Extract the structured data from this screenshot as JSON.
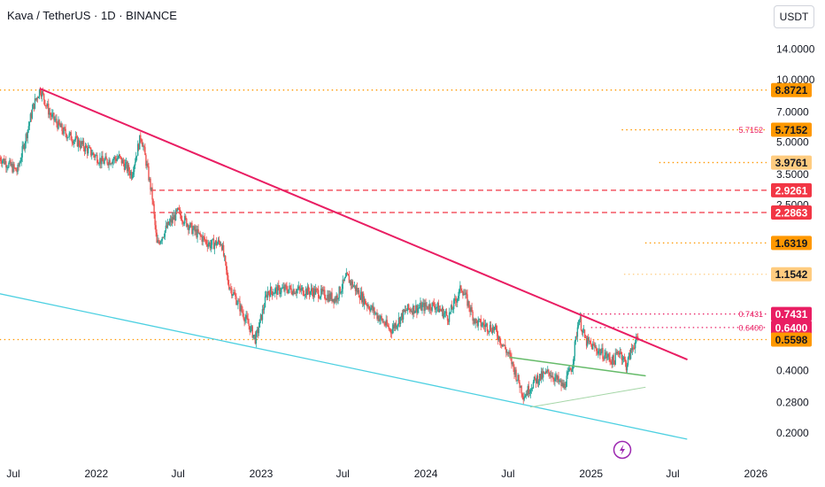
{
  "header": {
    "title": "Kava / TetherUS · 1D · BINANCE",
    "currency_label": "USDT"
  },
  "chart_data": {
    "type": "candlestick",
    "symbol": "Kava / TetherUS",
    "interval": "1D",
    "exchange": "BINANCE",
    "scale": "log",
    "y_ticks": [
      14.0,
      10.0,
      7.0,
      5.0,
      3.5,
      2.5,
      0.4,
      0.28,
      0.2
    ],
    "y_tick_labels": [
      "14.0000",
      "10.0000",
      "7.0000",
      "5.0000",
      "3.5000",
      "2.5000",
      "0.4000",
      "0.2800",
      "0.2000"
    ],
    "x_ticks": [
      {
        "date": "2021-07-01",
        "label": "Jul"
      },
      {
        "date": "2022-01-01",
        "label": "2022"
      },
      {
        "date": "2022-07-01",
        "label": "Jul"
      },
      {
        "date": "2023-01-01",
        "label": "2023"
      },
      {
        "date": "2023-07-01",
        "label": "Jul"
      },
      {
        "date": "2024-01-01",
        "label": "2024"
      },
      {
        "date": "2024-07-01",
        "label": "Jul"
      },
      {
        "date": "2025-01-01",
        "label": "2025"
      },
      {
        "date": "2025-07-01",
        "label": "Jul"
      },
      {
        "date": "2026-01-01",
        "label": "2026"
      }
    ],
    "price_path": [
      [
        "2021-06-01",
        4.2
      ],
      [
        "2021-07-10",
        3.6
      ],
      [
        "2021-08-15",
        7.5
      ],
      [
        "2021-08-30",
        9.0
      ],
      [
        "2021-09-20",
        6.8
      ],
      [
        "2021-10-20",
        5.6
      ],
      [
        "2021-12-01",
        4.8
      ],
      [
        "2022-01-15",
        4.0
      ],
      [
        "2022-02-20",
        4.2
      ],
      [
        "2022-03-20",
        3.5
      ],
      [
        "2022-04-10",
        5.4
      ],
      [
        "2022-04-25",
        3.6
      ],
      [
        "2022-05-05",
        2.7
      ],
      [
        "2022-05-15",
        1.6
      ],
      [
        "2022-06-10",
        2.0
      ],
      [
        "2022-07-01",
        2.3
      ],
      [
        "2022-08-01",
        1.9
      ],
      [
        "2022-09-10",
        1.6
      ],
      [
        "2022-10-05",
        1.65
      ],
      [
        "2022-10-20",
        1.05
      ],
      [
        "2022-12-20",
        0.56
      ],
      [
        "2023-01-15",
        0.95
      ],
      [
        "2023-03-01",
        0.98
      ],
      [
        "2023-05-01",
        0.95
      ],
      [
        "2023-06-15",
        0.88
      ],
      [
        "2023-07-10",
        1.12
      ],
      [
        "2023-08-20",
        0.85
      ],
      [
        "2023-10-15",
        0.62
      ],
      [
        "2023-11-20",
        0.78
      ],
      [
        "2024-01-20",
        0.82
      ],
      [
        "2024-02-20",
        0.72
      ],
      [
        "2024-03-20",
        1.0
      ],
      [
        "2024-04-20",
        0.68
      ],
      [
        "2024-06-01",
        0.63
      ],
      [
        "2024-07-05",
        0.46
      ],
      [
        "2024-08-05",
        0.3
      ],
      [
        "2024-09-01",
        0.36
      ],
      [
        "2024-10-01",
        0.39
      ],
      [
        "2024-11-01",
        0.33
      ],
      [
        "2024-11-20",
        0.42
      ],
      [
        "2024-12-05",
        0.72
      ],
      [
        "2024-12-20",
        0.55
      ],
      [
        "2025-01-15",
        0.5
      ],
      [
        "2025-02-01",
        0.47
      ],
      [
        "2025-02-20",
        0.44
      ],
      [
        "2025-03-05",
        0.5
      ],
      [
        "2025-03-20",
        0.42
      ],
      [
        "2025-04-05",
        0.53
      ],
      [
        "2025-04-15",
        0.5598
      ]
    ],
    "current_price": 0.5598,
    "price_labels": [
      {
        "value": 8.8721,
        "label": "8.8721",
        "color": "#ff9800"
      },
      {
        "value": 5.7152,
        "label": "5.7152",
        "color": "#ff9800"
      },
      {
        "value": 3.9761,
        "label": "3.9761",
        "color": "#ffcc80"
      },
      {
        "value": 2.9261,
        "label": "2.9261",
        "color": "#f23645"
      },
      {
        "value": 2.2863,
        "label": "2.2863",
        "color": "#f23645"
      },
      {
        "value": 1.6319,
        "label": "1.6319",
        "color": "#ff9800"
      },
      {
        "value": 1.1542,
        "label": "1.1542",
        "color": "#ffcc80"
      },
      {
        "value": 0.7431,
        "label": "0.7431",
        "color": "#e91e63"
      },
      {
        "value": 0.64,
        "label": "0.6400",
        "color": "#e91e63"
      },
      {
        "value": 0.5598,
        "label": "0.5598",
        "color": "#ff9800"
      }
    ],
    "horizontal_lines": [
      {
        "value": 8.8721,
        "from": "2021-06-01",
        "color": "#ff9800",
        "style": "dotted"
      },
      {
        "value": 5.7152,
        "from": "2025-03-10",
        "color": "#ff9800",
        "style": "dotted"
      },
      {
        "value": 3.9761,
        "from": "2025-06-01",
        "color": "#ff9800",
        "style": "dotted"
      },
      {
        "value": 2.9261,
        "from": "2022-05-01",
        "color": "#f23645",
        "style": "dashed"
      },
      {
        "value": 2.2863,
        "from": "2022-05-01",
        "color": "#f23645",
        "style": "dashed"
      },
      {
        "value": 1.6319,
        "from": "2025-05-01",
        "color": "#ff9800",
        "style": "dotted"
      },
      {
        "value": 1.1542,
        "from": "2025-03-15",
        "color": "#ffcc80",
        "style": "dotted"
      },
      {
        "value": 0.7431,
        "from": "2024-12-05",
        "color": "#e91e63",
        "style": "dotted"
      },
      {
        "value": 0.64,
        "from": "2025-01-01",
        "color": "#e91e63",
        "style": "dotted"
      },
      {
        "value": 0.5598,
        "from": "2021-06-01",
        "color": "#ff9800",
        "style": "dotted"
      }
    ],
    "inline_labels": [
      {
        "text": "5.7152",
        "value": 5.7152,
        "color": "#e91e63"
      },
      {
        "text": "0.7431",
        "value": 0.7431,
        "color": "#e91e63"
      },
      {
        "text": "0.6400",
        "value": 0.64,
        "color": "#e91e63"
      }
    ],
    "trendlines": [
      {
        "name": "descending-resistance",
        "color": "#e91e63",
        "width": 2,
        "points": [
          [
            "2021-08-30",
            9.0
          ],
          [
            "2025-08-01",
            0.45
          ]
        ]
      },
      {
        "name": "lower-channel",
        "color": "#4dd0e1",
        "width": 1.3,
        "points": [
          [
            "2021-06-01",
            0.93
          ],
          [
            "2025-08-01",
            0.186
          ]
        ]
      },
      {
        "name": "green-triangle-upper",
        "color": "#66bb6a",
        "width": 1.5,
        "points": [
          [
            "2024-07-05",
            0.46
          ],
          [
            "2025-05-01",
            0.375
          ]
        ]
      },
      {
        "name": "green-triangle-lower",
        "color": "#a5d6a7",
        "width": 1,
        "points": [
          [
            "2024-08-20",
            0.265
          ],
          [
            "2025-05-01",
            0.33
          ]
        ]
      }
    ],
    "colors": {
      "up": "#26a69a",
      "down": "#ef5350",
      "axis_text": "#131722"
    }
  }
}
